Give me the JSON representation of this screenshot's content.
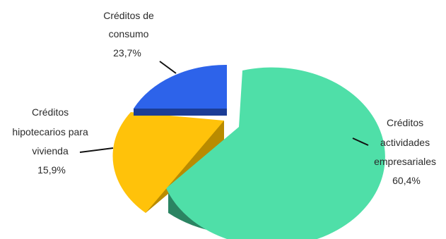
{
  "chart_data": {
    "type": "pie",
    "style": "3d-exploded",
    "title": "",
    "slices": [
      {
        "label": [
          "Créditos",
          "actividades",
          "empresariales"
        ],
        "value_label": "60,4%",
        "value": 60.4,
        "color": "#4fdfa8",
        "side_color": "#2b8462"
      },
      {
        "label": [
          "Créditos",
          "hipotecarios para",
          "vivienda"
        ],
        "value_label": "15,9%",
        "value": 15.9,
        "color": "#ffc20a",
        "side_color": "#b98b00"
      },
      {
        "label": [
          "Créditos de",
          "consumo"
        ],
        "value_label": "23,7%",
        "value": 23.7,
        "color": "#2d63ea",
        "side_color": "#1b3d96"
      }
    ]
  }
}
